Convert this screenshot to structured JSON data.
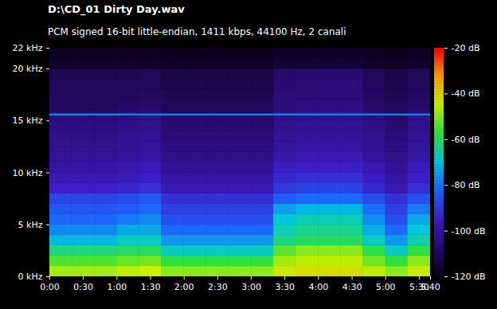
{
  "chart_data": {
    "type": "heatmap",
    "title": "D:\\CD_01 Dirty Day.wav",
    "subtitle": "PCM signed 16-bit little-endian, 1411 kbps, 44100 Hz, 2 canali",
    "x_bins": [
      0,
      20,
      40,
      60,
      80,
      100,
      120,
      140,
      160,
      180,
      200,
      220,
      240,
      260,
      280,
      300,
      320,
      340
    ],
    "y_bins": [
      0,
      1,
      2,
      3,
      4,
      5,
      6,
      7,
      8,
      9,
      10,
      11,
      12,
      13,
      14,
      15,
      15.5,
      15.7,
      16,
      17,
      18,
      19,
      20,
      21,
      22
    ],
    "cells": [
      [
        -48,
        -48,
        -48,
        -46,
        -45,
        -50,
        -50,
        -50,
        -50,
        -50,
        -44,
        -42,
        -42,
        -42,
        -46,
        -50,
        -44
      ],
      [
        -55,
        -55,
        -55,
        -53,
        -52,
        -58,
        -58,
        -58,
        -58,
        -58,
        -48,
        -46,
        -46,
        -46,
        -52,
        -58,
        -50
      ],
      [
        -62,
        -62,
        -62,
        -60,
        -60,
        -68,
        -68,
        -68,
        -68,
        -68,
        -54,
        -50,
        -50,
        -50,
        -58,
        -68,
        -58
      ],
      [
        -72,
        -72,
        -72,
        -68,
        -68,
        -76,
        -76,
        -76,
        -76,
        -76,
        -63,
        -60,
        -60,
        -60,
        -68,
        -76,
        -66
      ],
      [
        -78,
        -78,
        -78,
        -74,
        -74,
        -82,
        -82,
        -82,
        -82,
        -82,
        -67,
        -64,
        -64,
        -64,
        -73,
        -82,
        -70
      ],
      [
        -82,
        -82,
        -82,
        -80,
        -78,
        -86,
        -86,
        -86,
        -86,
        -86,
        -70,
        -67,
        -67,
        -67,
        -77,
        -86,
        -74
      ],
      [
        -85,
        -85,
        -85,
        -84,
        -82,
        -89,
        -89,
        -89,
        -89,
        -89,
        -75,
        -72,
        -72,
        -72,
        -81,
        -89,
        -80
      ],
      [
        -88,
        -88,
        -88,
        -87,
        -85,
        -92,
        -92,
        -92,
        -92,
        -92,
        -84,
        -82,
        -82,
        -82,
        -87,
        -92,
        -86
      ],
      [
        -95,
        -95,
        -95,
        -94,
        -92,
        -98,
        -98,
        -98,
        -98,
        -98,
        -90,
        -88,
        -88,
        -88,
        -93,
        -98,
        -92
      ],
      [
        -98,
        -98,
        -98,
        -97,
        -95,
        -100,
        -100,
        -100,
        -100,
        -100,
        -93,
        -92,
        -92,
        -92,
        -96,
        -100,
        -95
      ],
      [
        -100,
        -100,
        -100,
        -99,
        -97,
        -102,
        -102,
        -102,
        -102,
        -102,
        -96,
        -95,
        -95,
        -95,
        -98,
        -102,
        -97
      ],
      [
        -102,
        -102,
        -102,
        -101,
        -100,
        -104,
        -104,
        -104,
        -104,
        -104,
        -99,
        -98,
        -98,
        -98,
        -101,
        -104,
        -100
      ],
      [
        -103,
        -103,
        -103,
        -102,
        -101,
        -105,
        -105,
        -105,
        -105,
        -105,
        -101,
        -100,
        -100,
        -100,
        -102,
        -105,
        -101
      ],
      [
        -104,
        -104,
        -104,
        -103,
        -102,
        -106,
        -106,
        -106,
        -106,
        -106,
        -102,
        -101,
        -101,
        -101,
        -103,
        -106,
        -102
      ],
      [
        -105,
        -105,
        -105,
        -104,
        -103,
        -107,
        -107,
        -107,
        -107,
        -107,
        -103,
        -102,
        -102,
        -102,
        -104,
        -107,
        -103
      ],
      [
        -106,
        -106,
        -106,
        -105,
        -104,
        -108,
        -108,
        -108,
        -108,
        -108,
        -104,
        -103,
        -103,
        -103,
        -105,
        -108,
        -104
      ],
      [
        -78,
        -78,
        -78,
        -78,
        -78,
        -78,
        -78,
        -78,
        -78,
        -78,
        -78,
        -78,
        -78,
        -78,
        -78,
        -78,
        -78
      ],
      [
        -108,
        -108,
        -108,
        -107,
        -106,
        -110,
        -110,
        -110,
        -110,
        -110,
        -105,
        -104,
        -104,
        -104,
        -107,
        -110,
        -106
      ],
      [
        -110,
        -110,
        -110,
        -109,
        -108,
        -111,
        -111,
        -111,
        -111,
        -111,
        -106,
        -105,
        -105,
        -105,
        -108,
        -111,
        -108
      ],
      [
        -110,
        -110,
        -110,
        -110,
        -109,
        -112,
        -112,
        -112,
        -112,
        -112,
        -106,
        -106,
        -106,
        -106,
        -109,
        -112,
        -109
      ],
      [
        -111,
        -111,
        -111,
        -111,
        -110,
        -113,
        -113,
        -113,
        -113,
        -113,
        -107,
        -106,
        -106,
        -106,
        -110,
        -113,
        -110
      ],
      [
        -112,
        -112,
        -112,
        -112,
        -111,
        -114,
        -114,
        -114,
        -114,
        -114,
        -108,
        -107,
        -107,
        -107,
        -111,
        -114,
        -111
      ],
      [
        -118,
        -118,
        -118,
        -118,
        -118,
        -119,
        -119,
        -119,
        -119,
        -119,
        -117,
        -117,
        -117,
        -117,
        -118,
        -119,
        -118
      ],
      [
        -119,
        -119,
        -119,
        -119,
        -119,
        -120,
        -120,
        -120,
        -120,
        -120,
        -119,
        -119,
        -119,
        -119,
        -119,
        -120,
        -119
      ]
    ],
    "xlim": [
      0,
      340
    ],
    "xticks": [
      {
        "value": 0,
        "label": "0:00"
      },
      {
        "value": 30,
        "label": "0:30"
      },
      {
        "value": 60,
        "label": "1:00"
      },
      {
        "value": 90,
        "label": "1:30"
      },
      {
        "value": 120,
        "label": "2:00"
      },
      {
        "value": 150,
        "label": "2:30"
      },
      {
        "value": 180,
        "label": "3:00"
      },
      {
        "value": 210,
        "label": "3:30"
      },
      {
        "value": 240,
        "label": "4:00"
      },
      {
        "value": 270,
        "label": "4:30"
      },
      {
        "value": 300,
        "label": "5:00"
      },
      {
        "value": 330,
        "label": "5:30"
      },
      {
        "value": 340,
        "label": "5:40"
      }
    ],
    "ylim": [
      0,
      22
    ],
    "yticks": [
      {
        "value": 0,
        "label": "0 kHz"
      },
      {
        "value": 5,
        "label": "5 kHz"
      },
      {
        "value": 10,
        "label": "10 kHz"
      },
      {
        "value": 15,
        "label": "15 kHz"
      },
      {
        "value": 20,
        "label": "20 kHz"
      },
      {
        "value": 22,
        "label": "22 kHz"
      }
    ],
    "colorbar_range": [
      -120,
      -20
    ],
    "colorbar_ticks": [
      {
        "value": -20,
        "label": "-20 dB"
      },
      {
        "value": -40,
        "label": "-40 dB"
      },
      {
        "value": -60,
        "label": "-60 dB"
      },
      {
        "value": -80,
        "label": "-80 dB"
      },
      {
        "value": -100,
        "label": "-100 dB"
      },
      {
        "value": -120,
        "label": "-120 dB"
      }
    ]
  }
}
